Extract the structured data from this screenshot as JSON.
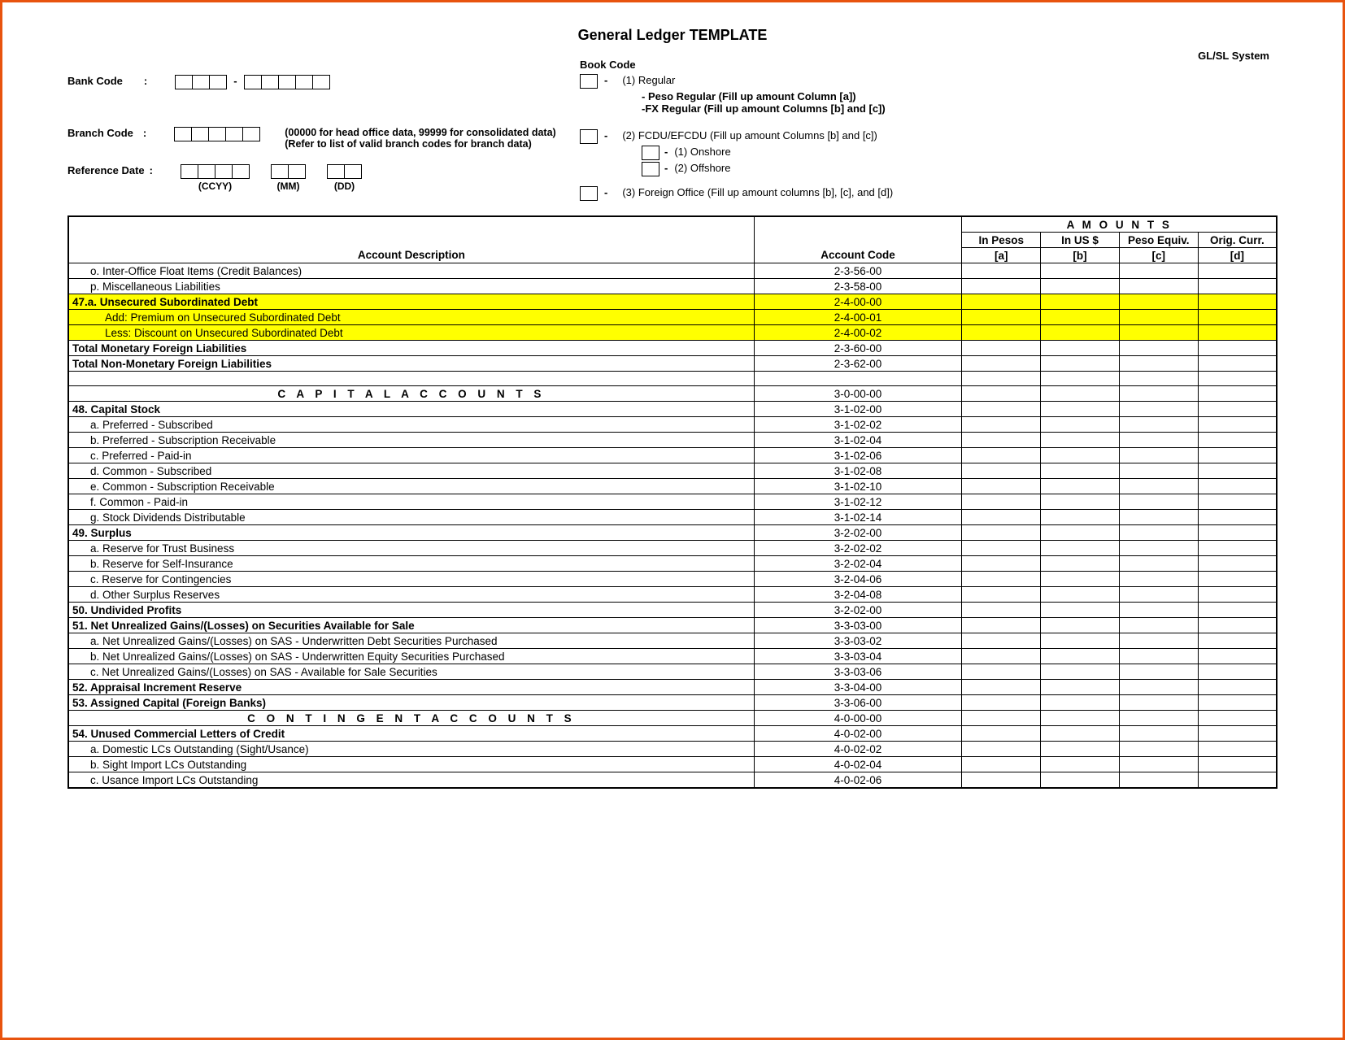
{
  "title": "General Ledger TEMPLATE",
  "system_label": "GL/SL System",
  "highlight_color": "#ffff00",
  "border_color": "#e8530e",
  "header": {
    "bank_code_label": "Bank Code",
    "branch_code_label": "Branch Code",
    "branch_note1": "(00000 for head office data, 99999 for consolidated data)",
    "branch_note2": "(Refer to list of valid branch codes for branch data)",
    "ref_date_label": "Reference Date",
    "ccyy": "(CCYY)",
    "mm": "(MM)",
    "dd": "(DD)",
    "book_code_label": "Book Code",
    "book1": "(1) Regular",
    "book1a": "- Peso Regular (Fill up amount Column [a])",
    "book1b": "-FX Regular (Fill up amount Columns [b] and [c])",
    "book2": "(2) FCDU/EFCDU (Fill up amount Columns [b] and [c])",
    "book2a": "(1) Onshore",
    "book2b": "(2) Offshore",
    "book3": "(3) Foreign Office (Fill up amount columns [b], [c], and [d])"
  },
  "table": {
    "hdr_amounts": "A M O U N T S",
    "hdr_desc": "Account Description",
    "hdr_code": "Account Code",
    "hdr_pesos": "In Pesos",
    "hdr_usd": "In US $",
    "hdr_peq": "Peso Equiv.",
    "hdr_orig": "Orig. Curr.",
    "hdr_a": "[a]",
    "hdr_b": "[b]",
    "hdr_c": "[c]",
    "hdr_d": "[d]",
    "rows": [
      {
        "desc": "o.  Inter-Office Float Items (Credit Balances)",
        "code": "2-3-56-00",
        "bold": false,
        "indent": 1,
        "hl": false,
        "section": false
      },
      {
        "desc": "p.  Miscellaneous Liabilities",
        "code": "2-3-58-00",
        "bold": false,
        "indent": 1,
        "hl": false,
        "section": false
      },
      {
        "desc": "47.a.  Unsecured Subordinated Debt",
        "code": "2-4-00-00",
        "bold": true,
        "indent": 0,
        "hl": true,
        "section": false
      },
      {
        "desc": "Add:  Premium on Unsecured Subordinated Debt",
        "code": "2-4-00-01",
        "bold": false,
        "indent": 2,
        "hl": true,
        "section": false
      },
      {
        "desc": "Less:   Discount on Unsecured Subordinated Debt",
        "code": "2-4-00-02",
        "bold": false,
        "indent": 2,
        "hl": true,
        "section": false
      },
      {
        "desc": "Total Monetary Foreign Liabilities",
        "code": "2-3-60-00",
        "bold": true,
        "indent": 0,
        "hl": false,
        "section": false
      },
      {
        "desc": "Total Non-Monetary Foreign Liabilities",
        "code": "2-3-62-00",
        "bold": true,
        "indent": 0,
        "hl": false,
        "section": false
      },
      {
        "desc": "",
        "code": "",
        "bold": false,
        "indent": 0,
        "hl": false,
        "section": false
      },
      {
        "desc": "C A P I T A L    A C C O U N T S",
        "code": "3-0-00-00",
        "bold": true,
        "indent": 0,
        "hl": false,
        "section": true
      },
      {
        "desc": "48.  Capital Stock",
        "code": "3-1-02-00",
        "bold": true,
        "indent": 0,
        "hl": false,
        "section": false
      },
      {
        "desc": "a.  Preferred - Subscribed",
        "code": "3-1-02-02",
        "bold": false,
        "indent": 1,
        "hl": false,
        "section": false
      },
      {
        "desc": "b.  Preferred - Subscription Receivable",
        "code": "3-1-02-04",
        "bold": false,
        "indent": 1,
        "hl": false,
        "section": false
      },
      {
        "desc": "c.  Preferred - Paid-in",
        "code": "3-1-02-06",
        "bold": false,
        "indent": 1,
        "hl": false,
        "section": false
      },
      {
        "desc": "d.  Common - Subscribed",
        "code": "3-1-02-08",
        "bold": false,
        "indent": 1,
        "hl": false,
        "section": false
      },
      {
        "desc": "e.  Common - Subscription Receivable",
        "code": "3-1-02-10",
        "bold": false,
        "indent": 1,
        "hl": false,
        "section": false
      },
      {
        "desc": "f.   Common - Paid-in",
        "code": "3-1-02-12",
        "bold": false,
        "indent": 1,
        "hl": false,
        "section": false
      },
      {
        "desc": "g.  Stock Dividends Distributable",
        "code": "3-1-02-14",
        "bold": false,
        "indent": 1,
        "hl": false,
        "section": false
      },
      {
        "desc": "49.   Surplus",
        "code": "3-2-02-00",
        "bold": true,
        "indent": 0,
        "hl": false,
        "section": false
      },
      {
        "desc": "a.  Reserve for Trust Business",
        "code": "3-2-02-02",
        "bold": false,
        "indent": 1,
        "hl": false,
        "section": false
      },
      {
        "desc": "b.  Reserve for Self-Insurance",
        "code": "3-2-02-04",
        "bold": false,
        "indent": 1,
        "hl": false,
        "section": false
      },
      {
        "desc": "c.  Reserve for Contingencies",
        "code": "3-2-04-06",
        "bold": false,
        "indent": 1,
        "hl": false,
        "section": false
      },
      {
        "desc": "d.  Other Surplus Reserves",
        "code": "3-2-04-08",
        "bold": false,
        "indent": 1,
        "hl": false,
        "section": false
      },
      {
        "desc": "50.   Undivided Profits",
        "code": "3-2-02-00",
        "bold": true,
        "indent": 0,
        "hl": false,
        "section": false
      },
      {
        "desc": "51.  Net Unrealized Gains/(Losses) on Securities Available for Sale",
        "code": "3-3-03-00",
        "bold": true,
        "indent": 0,
        "hl": false,
        "section": false
      },
      {
        "desc": "a.  Net Unrealized Gains/(Losses) on SAS - Underwritten Debt Securities Purchased",
        "code": "3-3-03-02",
        "bold": false,
        "indent": 1,
        "hl": false,
        "section": false
      },
      {
        "desc": "b.  Net Unrealized Gains/(Losses) on SAS - Underwritten Equity Securities Purchased",
        "code": "3-3-03-04",
        "bold": false,
        "indent": 1,
        "hl": false,
        "section": false
      },
      {
        "desc": "c.  Net Unrealized Gains/(Losses) on SAS - Available for Sale Securities",
        "code": "3-3-03-06",
        "bold": false,
        "indent": 1,
        "hl": false,
        "section": false
      },
      {
        "desc": "52.  Appraisal Increment Reserve",
        "code": "3-3-04-00",
        "bold": true,
        "indent": 0,
        "hl": false,
        "section": false
      },
      {
        "desc": "53.   Assigned Capital (Foreign Banks)",
        "code": "3-3-06-00",
        "bold": true,
        "indent": 0,
        "hl": false,
        "section": false
      },
      {
        "desc": "C O N T I N G E N T   A C C O U N T S",
        "code": "4-0-00-00",
        "bold": true,
        "indent": 0,
        "hl": false,
        "section": true
      },
      {
        "desc": "54.  Unused Commercial Letters of Credit",
        "code": "4-0-02-00",
        "bold": true,
        "indent": 0,
        "hl": false,
        "section": false
      },
      {
        "desc": "a.  Domestic LCs Outstanding (Sight/Usance)",
        "code": "4-0-02-02",
        "bold": false,
        "indent": 1,
        "hl": false,
        "section": false
      },
      {
        "desc": "b.  Sight Import LCs Outstanding",
        "code": "4-0-02-04",
        "bold": false,
        "indent": 1,
        "hl": false,
        "section": false
      },
      {
        "desc": "c.  Usance Import LCs Outstanding",
        "code": "4-0-02-06",
        "bold": false,
        "indent": 1,
        "hl": false,
        "section": false
      }
    ]
  }
}
